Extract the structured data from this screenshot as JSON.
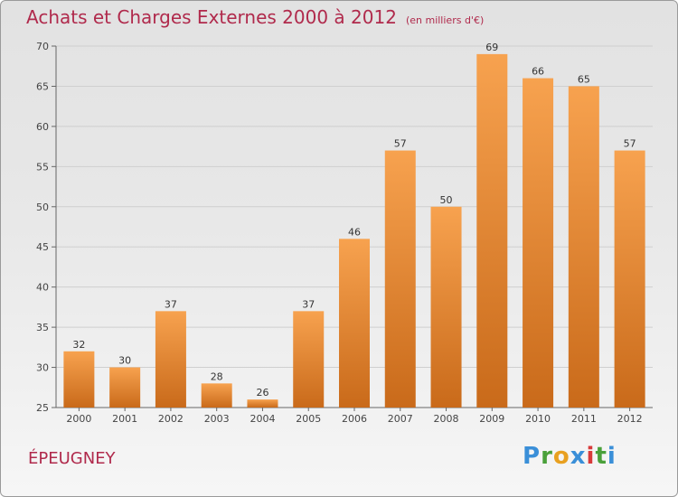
{
  "title": "Achats et Charges Externes 2000 à 2012",
  "unit": "(en milliers d'€)",
  "commune": "ÉPEUGNEY",
  "logo": {
    "letters": [
      "P",
      "r",
      "o",
      "x",
      "i",
      "t",
      "i"
    ],
    "colors": [
      "#3a8fd8",
      "#4aa03a",
      "#e8a020",
      "#3a8fd8",
      "#d83a3a",
      "#4aa03a",
      "#3a8fd8"
    ]
  },
  "colors": {
    "bar_top": "#f7a24f",
    "bar_bottom": "#c96a1a",
    "grid": "#cfcfcf",
    "title": "#b02a4c"
  },
  "chart_data": {
    "type": "bar",
    "categories": [
      "2000",
      "2001",
      "2002",
      "2003",
      "2004",
      "2005",
      "2006",
      "2007",
      "2008",
      "2009",
      "2010",
      "2011",
      "2012"
    ],
    "values": [
      32,
      30,
      37,
      28,
      26,
      37,
      46,
      57,
      50,
      69,
      66,
      65,
      57
    ],
    "ylim": [
      25,
      70
    ],
    "yticks": [
      25,
      30,
      35,
      40,
      45,
      50,
      55,
      60,
      65,
      70
    ],
    "grid": true
  }
}
